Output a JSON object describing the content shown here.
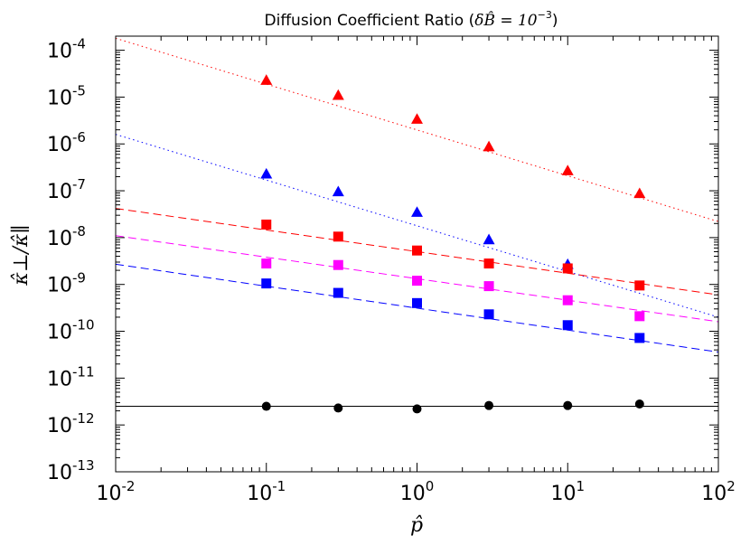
{
  "chart_data": {
    "type": "scatter",
    "title": "Diffusion Coefficient Ratio (δB̂ = 10⁻³)",
    "title_prefix": "Diffusion Coefficient Ratio (",
    "title_math": "δB̂ = 10",
    "title_exp": "−3",
    "title_suffix": ")",
    "xlabel": "p̂",
    "ylabel": "κ̂⊥/κ̂∥",
    "xscale": "log",
    "yscale": "log",
    "xlim": [
      0.01,
      100
    ],
    "ylim": [
      1e-13,
      0.0002
    ],
    "x_ticks": [
      {
        "value": 0.01,
        "base": "10",
        "exp": "-2"
      },
      {
        "value": 0.1,
        "base": "10",
        "exp": "-1"
      },
      {
        "value": 1,
        "base": "10",
        "exp": "0"
      },
      {
        "value": 10,
        "base": "10",
        "exp": "1"
      },
      {
        "value": 100,
        "base": "10",
        "exp": "2"
      }
    ],
    "y_ticks": [
      {
        "value": 1e-13,
        "base": "10",
        "exp": "-13"
      },
      {
        "value": 1e-12,
        "base": "10",
        "exp": "-12"
      },
      {
        "value": 1e-11,
        "base": "10",
        "exp": "-11"
      },
      {
        "value": 1e-10,
        "base": "10",
        "exp": "-10"
      },
      {
        "value": 1e-09,
        "base": "10",
        "exp": "-9"
      },
      {
        "value": 1e-08,
        "base": "10",
        "exp": "-8"
      },
      {
        "value": 1e-07,
        "base": "10",
        "exp": "-7"
      },
      {
        "value": 1e-06,
        "base": "10",
        "exp": "-6"
      },
      {
        "value": 1e-05,
        "base": "10",
        "exp": "-5"
      },
      {
        "value": 0.0001,
        "base": "10",
        "exp": "-4"
      }
    ],
    "series": [
      {
        "name": "red-triangles",
        "marker": "triangle",
        "color": "#ff0000",
        "x": [
          0.1,
          0.3,
          1,
          3,
          10,
          30
        ],
        "y": [
          2.3e-05,
          1.1e-05,
          3.4e-06,
          8.8e-07,
          2.7e-07,
          8.8e-08
        ]
      },
      {
        "name": "blue-triangles",
        "marker": "triangle",
        "color": "#0000ff",
        "x": [
          0.1,
          0.3,
          1,
          3,
          10
        ],
        "y": [
          2.3e-07,
          9.6e-08,
          3.5e-08,
          9.1e-09,
          2.7e-09
        ]
      },
      {
        "name": "red-squares",
        "marker": "square",
        "color": "#ff0000",
        "x": [
          0.1,
          0.3,
          1,
          3,
          10,
          30
        ],
        "y": [
          1.9e-08,
          1.05e-08,
          5.3e-09,
          2.8e-09,
          2.2e-09,
          9.5e-10
        ]
      },
      {
        "name": "magenta-squares",
        "marker": "square",
        "color": "#ff00ff",
        "x": [
          0.1,
          0.3,
          1,
          3,
          10,
          30
        ],
        "y": [
          2.8e-09,
          2.6e-09,
          1.2e-09,
          9.2e-10,
          4.6e-10,
          2.1e-10
        ]
      },
      {
        "name": "blue-squares",
        "marker": "square",
        "color": "#0000ff",
        "x": [
          0.1,
          0.3,
          1,
          3,
          10,
          30
        ],
        "y": [
          1.05e-09,
          6.6e-10,
          4e-10,
          2.3e-10,
          1.35e-10,
          7.2e-11
        ]
      },
      {
        "name": "black-circles",
        "marker": "circle",
        "color": "#000000",
        "x": [
          0.1,
          0.3,
          1,
          3,
          10,
          30
        ],
        "y": [
          2.5e-12,
          2.3e-12,
          2.2e-12,
          2.6e-12,
          2.6e-12,
          2.8e-12
        ]
      }
    ],
    "fit_lines": [
      {
        "name": "red-dotted-fit",
        "style": "dotted",
        "color": "#ff0000",
        "x": [
          0.01,
          100
        ],
        "y": [
          0.00018,
          2.2e-08
        ]
      },
      {
        "name": "blue-dotted-fit",
        "style": "dotted",
        "color": "#0000ff",
        "x": [
          0.01,
          100
        ],
        "y": [
          1.6e-06,
          2e-10
        ]
      },
      {
        "name": "red-dashed-fit",
        "style": "dashed",
        "color": "#ff0000",
        "x": [
          0.01,
          100
        ],
        "y": [
          4.2e-08,
          6e-10
        ]
      },
      {
        "name": "magenta-dashed-fit",
        "style": "dashed",
        "color": "#ff00ff",
        "x": [
          0.01,
          100
        ],
        "y": [
          1.1e-08,
          1.6e-10
        ]
      },
      {
        "name": "blue-dashed-fit",
        "style": "dashed",
        "color": "#0000ff",
        "x": [
          0.01,
          100
        ],
        "y": [
          2.7e-09,
          3.6e-11
        ]
      },
      {
        "name": "black-solid-fit",
        "style": "solid",
        "color": "#000000",
        "x": [
          0.01,
          100
        ],
        "y": [
          2.5e-12,
          2.5e-12
        ]
      }
    ]
  }
}
